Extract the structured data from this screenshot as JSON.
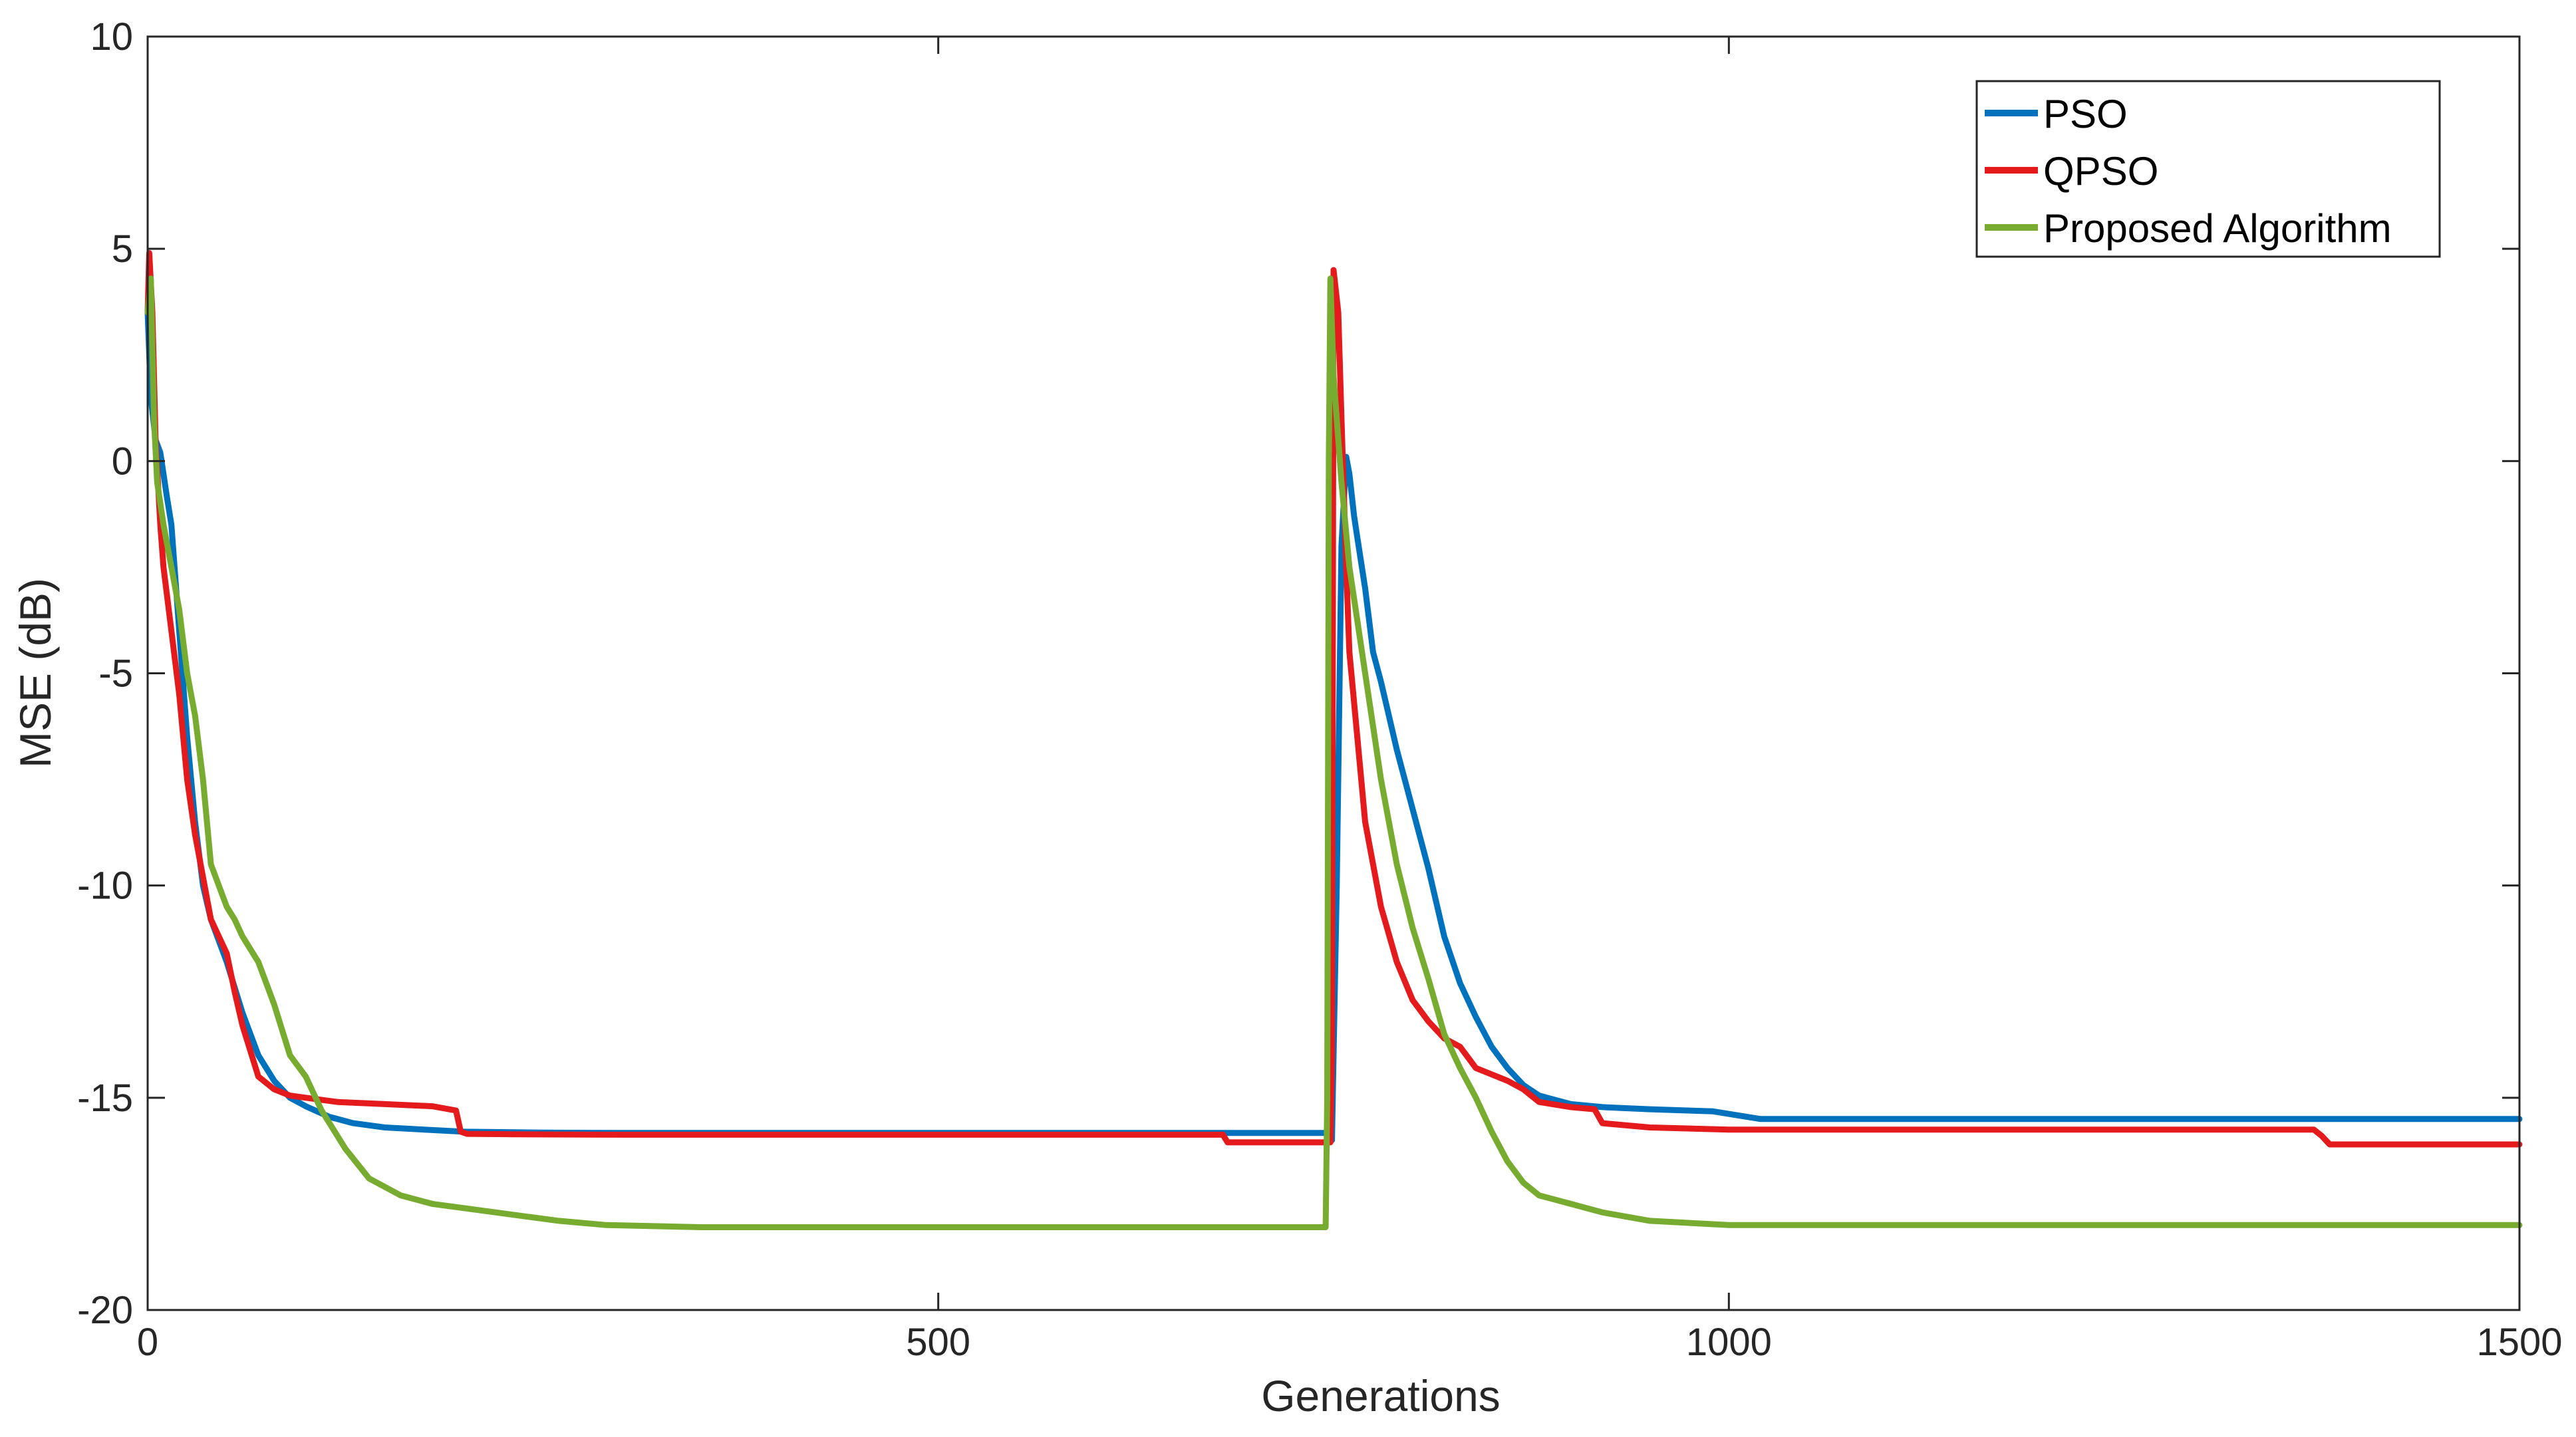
{
  "chart_data": {
    "type": "line",
    "title": "",
    "xlabel": "Generations",
    "ylabel": "MSE (dB)",
    "xlim": [
      0,
      1500
    ],
    "ylim": [
      -20,
      10
    ],
    "xticks": [
      0,
      500,
      1000,
      1500
    ],
    "yticks": [
      10,
      5,
      0,
      -5,
      -10,
      -15,
      -20
    ],
    "xtick_labels": [
      "0",
      "500",
      "1000",
      "1500"
    ],
    "ytick_labels": [
      "10",
      "5",
      "0",
      "-5",
      "-10",
      "-15",
      "-20"
    ],
    "grid": false,
    "legend_position": "top-right",
    "series": [
      {
        "name": "PSO",
        "color": "#0072BD",
        "x": [
          0,
          2,
          5,
          8,
          12,
          15,
          20,
          25,
          30,
          35,
          40,
          50,
          60,
          70,
          80,
          90,
          100,
          115,
          130,
          150,
          175,
          200,
          250,
          300,
          400,
          500,
          600,
          700,
          748,
          749,
          752,
          755,
          758,
          760,
          763,
          765,
          770,
          775,
          780,
          790,
          800,
          810,
          820,
          830,
          840,
          850,
          860,
          870,
          880,
          900,
          920,
          950,
          990,
          1020,
          1100,
          1200,
          1300,
          1400,
          1500
        ],
        "y": [
          3.5,
          1.5,
          0.5,
          0.2,
          -0.8,
          -1.5,
          -4,
          -6.5,
          -8.5,
          -10,
          -10.8,
          -11.8,
          -13,
          -14,
          -14.6,
          -15.0,
          -15.2,
          -15.45,
          -15.6,
          -15.7,
          -15.75,
          -15.8,
          -15.82,
          -15.83,
          -15.83,
          -15.83,
          -15.83,
          -15.83,
          -15.83,
          -16.0,
          -10,
          -2,
          0.1,
          -0.3,
          -1.3,
          -1.8,
          -3,
          -4.5,
          -5.2,
          -6.8,
          -8.2,
          -9.6,
          -11.2,
          -12.3,
          -13.1,
          -13.8,
          -14.3,
          -14.7,
          -14.95,
          -15.15,
          -15.22,
          -15.27,
          -15.32,
          -15.5,
          -15.5,
          -15.5,
          -15.5,
          -15.5,
          -15.5
        ]
      },
      {
        "name": "QPSO",
        "color": "#E41A1C",
        "x": [
          0,
          1,
          3,
          5,
          8,
          10,
          15,
          20,
          25,
          30,
          35,
          40,
          50,
          55,
          60,
          65,
          70,
          80,
          90,
          100,
          120,
          150,
          180,
          195,
          198,
          202,
          230,
          300,
          400,
          500,
          600,
          680,
          683,
          700,
          748,
          749,
          750,
          753,
          755,
          758,
          760,
          765,
          770,
          780,
          790,
          800,
          810,
          820,
          830,
          840,
          850,
          860,
          870,
          880,
          900,
          915,
          920,
          950,
          1000,
          1100,
          1200,
          1300,
          1370,
          1375,
          1380,
          1400,
          1500
        ],
        "y": [
          3.5,
          4.9,
          3.5,
          0.5,
          -1.5,
          -2.5,
          -4,
          -5.5,
          -7.5,
          -8.8,
          -9.8,
          -10.8,
          -11.6,
          -12.5,
          -13.3,
          -13.9,
          -14.5,
          -14.8,
          -14.95,
          -15.0,
          -15.1,
          -15.15,
          -15.2,
          -15.3,
          -15.8,
          -15.85,
          -15.86,
          -15.87,
          -15.87,
          -15.87,
          -15.87,
          -15.87,
          -16.05,
          -16.05,
          -16.05,
          -14,
          4.5,
          3.5,
          1.0,
          -2.5,
          -4.5,
          -6.5,
          -8.5,
          -10.5,
          -11.8,
          -12.7,
          -13.2,
          -13.6,
          -13.8,
          -14.3,
          -14.45,
          -14.6,
          -14.8,
          -15.1,
          -15.22,
          -15.27,
          -15.6,
          -15.7,
          -15.75,
          -15.75,
          -15.75,
          -15.75,
          -15.75,
          -15.9,
          -16.1,
          -16.1,
          -16.1
        ]
      },
      {
        "name": "Proposed Algorithm",
        "color": "#77AC30",
        "x": [
          0,
          2,
          4,
          6,
          10,
          15,
          20,
          25,
          30,
          35,
          40,
          45,
          50,
          55,
          60,
          70,
          80,
          90,
          100,
          110,
          115,
          125,
          140,
          160,
          180,
          200,
          230,
          260,
          290,
          350,
          450,
          550,
          650,
          745,
          746,
          747,
          748,
          750,
          755,
          760,
          770,
          780,
          790,
          800,
          810,
          820,
          830,
          840,
          850,
          860,
          870,
          880,
          900,
          920,
          950,
          1000,
          1100,
          1200,
          1300,
          1400,
          1500
        ],
        "y": [
          3.5,
          4.3,
          1.0,
          -0.5,
          -1.5,
          -2.5,
          -3.5,
          -5.0,
          -6.0,
          -7.5,
          -9.5,
          -10.0,
          -10.5,
          -10.8,
          -11.2,
          -11.8,
          -12.8,
          -14.0,
          -14.5,
          -15.3,
          -15.6,
          -16.2,
          -16.9,
          -17.3,
          -17.5,
          -17.6,
          -17.75,
          -17.9,
          -18.0,
          -18.05,
          -18.05,
          -18.05,
          -18.05,
          -18.05,
          -15.0,
          0,
          4.3,
          2.0,
          -0.5,
          -2.5,
          -5.0,
          -7.5,
          -9.5,
          -11.0,
          -12.2,
          -13.5,
          -14.3,
          -15.0,
          -15.8,
          -16.5,
          -17.0,
          -17.3,
          -17.5,
          -17.7,
          -17.9,
          -18.0,
          -18.0,
          -18.0,
          -18.0,
          -18.0,
          -18.0
        ]
      }
    ]
  }
}
